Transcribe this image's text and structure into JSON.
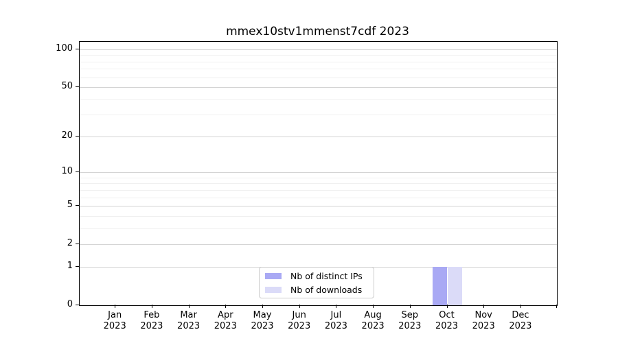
{
  "chart_data": {
    "type": "bar",
    "title": "mmex10stv1mmenst7cdf 2023",
    "x": [
      "Jan 2023",
      "Feb 2023",
      "Mar 2023",
      "Apr 2023",
      "May 2023",
      "Jun 2023",
      "Jul 2023",
      "Aug 2023",
      "Sep 2023",
      "Oct 2023",
      "Nov 2023",
      "Dec 2023"
    ],
    "series": [
      {
        "name": "Nb of distinct IPs",
        "color": "#a9a9f4",
        "values": [
          0,
          0,
          0,
          0,
          0,
          0,
          0,
          0,
          0,
          1,
          0,
          0
        ]
      },
      {
        "name": "Nb of downloads",
        "color": "#dbdbf8",
        "values": [
          0,
          0,
          0,
          0,
          0,
          0,
          0,
          0,
          0,
          1,
          0,
          0
        ]
      }
    ],
    "yscale": "log1p",
    "ylim": [
      0,
      115
    ],
    "y_tick_labels": [
      "0",
      "1",
      "2",
      "5",
      "10",
      "20",
      "50",
      "100"
    ],
    "y_major_ticks": [
      0,
      1,
      2,
      5,
      10,
      20,
      50,
      100
    ],
    "y_minor_ticks": [
      3,
      4,
      6,
      7,
      8,
      9,
      30,
      40,
      60,
      70,
      80,
      90
    ],
    "grid": "horizontal-only",
    "legend_position": "lower center"
  },
  "colors": {
    "grid_major": "#d4d4d4",
    "grid_minor": "#f0f0f0",
    "axis": "#000000",
    "legend_border": "#cccccc",
    "text": "#000000"
  }
}
